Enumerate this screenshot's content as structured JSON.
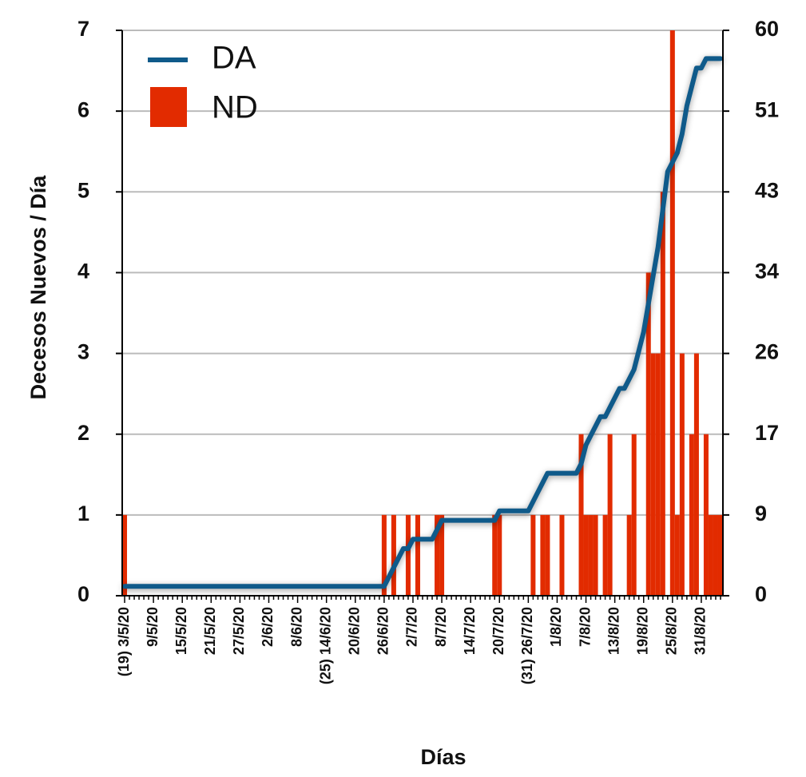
{
  "chart_data": {
    "type": "bar",
    "y_label": "Decesos Nuevos / Día",
    "x_label": "Días",
    "categories": [
      "(19) 3/5/20",
      null,
      null,
      null,
      null,
      null,
      "9/5/20",
      null,
      null,
      null,
      null,
      null,
      "15/5/20",
      null,
      null,
      null,
      null,
      null,
      "21/5/20",
      null,
      null,
      null,
      null,
      null,
      "27/5/20",
      null,
      null,
      null,
      null,
      null,
      "2/6/20",
      null,
      null,
      null,
      null,
      null,
      "8/6/20",
      null,
      null,
      null,
      null,
      null,
      "(25) 14/6/20",
      null,
      null,
      null,
      null,
      null,
      "20/6/20",
      null,
      null,
      null,
      null,
      null,
      "26/6/20",
      null,
      null,
      null,
      null,
      null,
      "2/7/20",
      null,
      null,
      null,
      null,
      null,
      "8/7/20",
      null,
      null,
      null,
      null,
      null,
      "14/7/20",
      null,
      null,
      null,
      null,
      null,
      "20/7/20",
      null,
      null,
      null,
      null,
      null,
      "(31) 26/7/20",
      null,
      null,
      null,
      null,
      null,
      "1/8/20",
      null,
      null,
      null,
      null,
      null,
      "7/8/20",
      null,
      null,
      null,
      null,
      null,
      "13/8/20",
      null,
      null,
      null,
      null,
      null,
      "19/8/20",
      null,
      null,
      null,
      null,
      null,
      "25/8/20",
      null,
      null,
      null,
      null,
      null,
      "31/8/20",
      null,
      null,
      null,
      null
    ],
    "series": [
      {
        "name": "DA",
        "type": "line",
        "axis": "y2",
        "color": "#0f5a8a",
        "values": [
          1,
          1,
          1,
          1,
          1,
          1,
          1,
          1,
          1,
          1,
          1,
          1,
          1,
          1,
          1,
          1,
          1,
          1,
          1,
          1,
          1,
          1,
          1,
          1,
          1,
          1,
          1,
          1,
          1,
          1,
          1,
          1,
          1,
          1,
          1,
          1,
          1,
          1,
          1,
          1,
          1,
          1,
          1,
          1,
          1,
          1,
          1,
          1,
          1,
          1,
          1,
          1,
          1,
          1,
          1,
          2,
          3,
          4,
          5,
          5,
          6,
          6,
          6,
          6,
          6,
          7,
          8,
          8,
          8,
          8,
          8,
          8,
          8,
          8,
          8,
          8,
          8,
          8,
          9,
          9,
          9,
          9,
          9,
          9,
          9,
          10,
          11,
          12,
          13,
          13,
          13,
          13,
          13,
          13,
          13,
          14,
          16,
          17,
          18,
          19,
          19,
          20,
          21,
          22,
          22,
          23,
          24,
          26,
          28,
          31,
          34,
          37,
          41,
          45,
          46,
          47,
          49,
          52,
          54,
          56,
          56,
          57,
          57,
          57,
          57
        ]
      },
      {
        "name": "ND",
        "type": "bar",
        "color": "#e22b00",
        "values": [
          1,
          0,
          0,
          0,
          0,
          0,
          0,
          0,
          0,
          0,
          0,
          0,
          0,
          0,
          0,
          0,
          0,
          0,
          0,
          0,
          0,
          0,
          0,
          0,
          0,
          0,
          0,
          0,
          0,
          0,
          0,
          0,
          0,
          0,
          0,
          0,
          0,
          0,
          0,
          0,
          0,
          0,
          0,
          0,
          0,
          0,
          0,
          0,
          0,
          0,
          0,
          0,
          0,
          0,
          1,
          0,
          1,
          0,
          0,
          1,
          0,
          1,
          0,
          0,
          0,
          1,
          1,
          0,
          0,
          0,
          0,
          0,
          0,
          0,
          0,
          0,
          0,
          1,
          1,
          0,
          0,
          0,
          0,
          0,
          0,
          1,
          0,
          1,
          1,
          0,
          0,
          1,
          0,
          0,
          0,
          2,
          1,
          1,
          1,
          0,
          1,
          2,
          0,
          0,
          0,
          1,
          2,
          0,
          0,
          4,
          3,
          3,
          5,
          0,
          7,
          1,
          3,
          0,
          2,
          3,
          0,
          2,
          1,
          1,
          1
        ]
      }
    ],
    "ylim": [
      0,
      7
    ],
    "yticks": [
      0,
      1,
      2,
      3,
      4,
      5,
      6,
      7
    ],
    "y2lim": [
      0,
      60
    ],
    "y2ticks": [
      0,
      {
        "value": 8.571,
        "label": "9"
      },
      {
        "value": 17.143,
        "label": "17"
      },
      {
        "value": 25.714,
        "label": "26"
      },
      {
        "value": 34.286,
        "label": "34"
      },
      {
        "value": 42.857,
        "label": "43"
      },
      {
        "value": 51.429,
        "label": "51"
      },
      60
    ],
    "grid": true,
    "legend": "top-left"
  }
}
